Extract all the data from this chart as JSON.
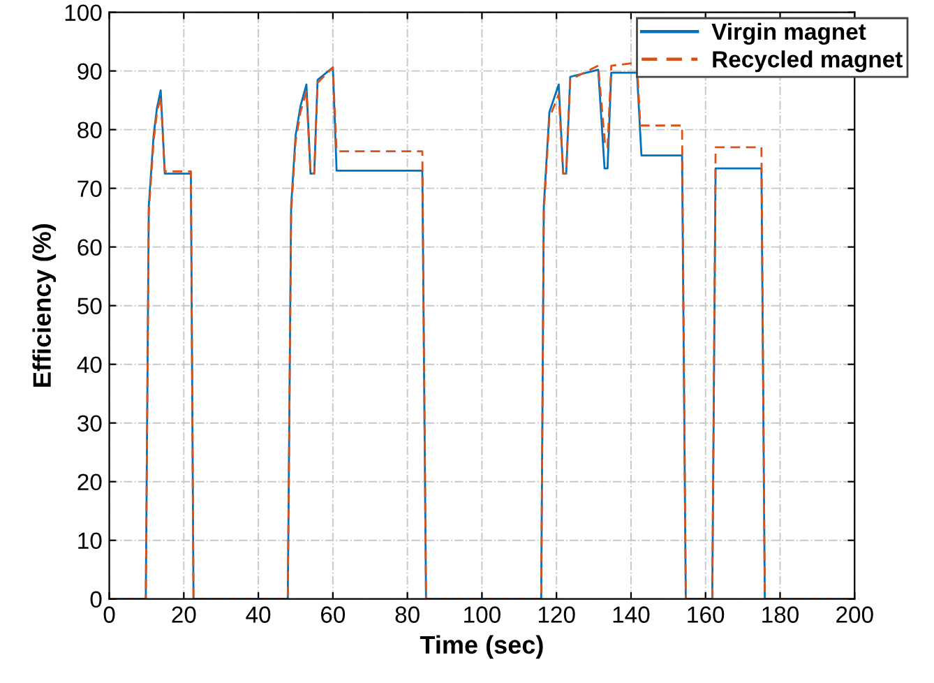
{
  "chart_data": {
    "type": "line",
    "xlabel": "Time (sec)",
    "ylabel": "Efficiency (%)",
    "xlim": [
      0,
      200
    ],
    "xticks": [
      0,
      20,
      40,
      60,
      80,
      100,
      120,
      140,
      160,
      180,
      200
    ],
    "ylim": [
      0,
      100
    ],
    "yticks": [
      0,
      10,
      20,
      30,
      40,
      50,
      60,
      70,
      80,
      90,
      100
    ],
    "grid": true,
    "legend": "top right",
    "series": [
      {
        "name": "Virgin magnet",
        "color": "#0072bd",
        "line_style": "solid",
        "x": [
          0,
          9.8,
          10.6,
          11.9,
          12.8,
          13.8,
          14.9,
          21.9,
          22.6,
          47.9,
          48.8,
          50,
          51.3,
          52.9,
          54,
          55,
          55.9,
          60,
          61,
          84,
          85,
          115.9,
          116.6,
          118.1,
          120.6,
          121.8,
          122.6,
          123.7,
          131.2,
          132.9,
          133.7,
          134.7,
          141.6,
          142.8,
          153.7,
          154.7,
          161.8,
          162.7,
          175,
          175.9,
          200
        ],
        "values": [
          0,
          0,
          67,
          79,
          83.7,
          86.7,
          72.5,
          72.5,
          0,
          0,
          67,
          79,
          84,
          87.7,
          72.5,
          72.5,
          88.5,
          90.6,
          73,
          73,
          0,
          0,
          67,
          83,
          87.7,
          72.5,
          72.5,
          89,
          90.2,
          73.4,
          73.4,
          89.7,
          89.7,
          75.6,
          75.6,
          0,
          0,
          73.4,
          73.4,
          0,
          0
        ]
      },
      {
        "name": "Recycled magnet",
        "color": "#d95319",
        "line_style": "dashed",
        "x": [
          0,
          9.8,
          10.6,
          11.9,
          12.8,
          13.8,
          14.9,
          21.9,
          22.6,
          47.9,
          48.8,
          50,
          51.3,
          52.9,
          54,
          55,
          55.9,
          60,
          61,
          84,
          85,
          115.9,
          116.6,
          118.1,
          120.6,
          121.8,
          122.6,
          123.7,
          131.2,
          133.1,
          133.7,
          134.7,
          141.6,
          142.5,
          153.7,
          154.7,
          161.8,
          162.7,
          175,
          175.9,
          200
        ],
        "values": [
          0,
          0,
          66,
          78,
          83,
          85.5,
          72.9,
          72.9,
          0,
          0,
          66,
          78,
          83,
          86.5,
          72.5,
          72.5,
          88,
          90.6,
          76.3,
          76.3,
          0,
          0,
          66,
          82,
          86,
          72.5,
          72.5,
          88.5,
          90.9,
          77,
          77,
          90.9,
          91.4,
          80.7,
          80.7,
          0,
          0,
          77,
          77,
          0,
          0
        ]
      }
    ]
  }
}
